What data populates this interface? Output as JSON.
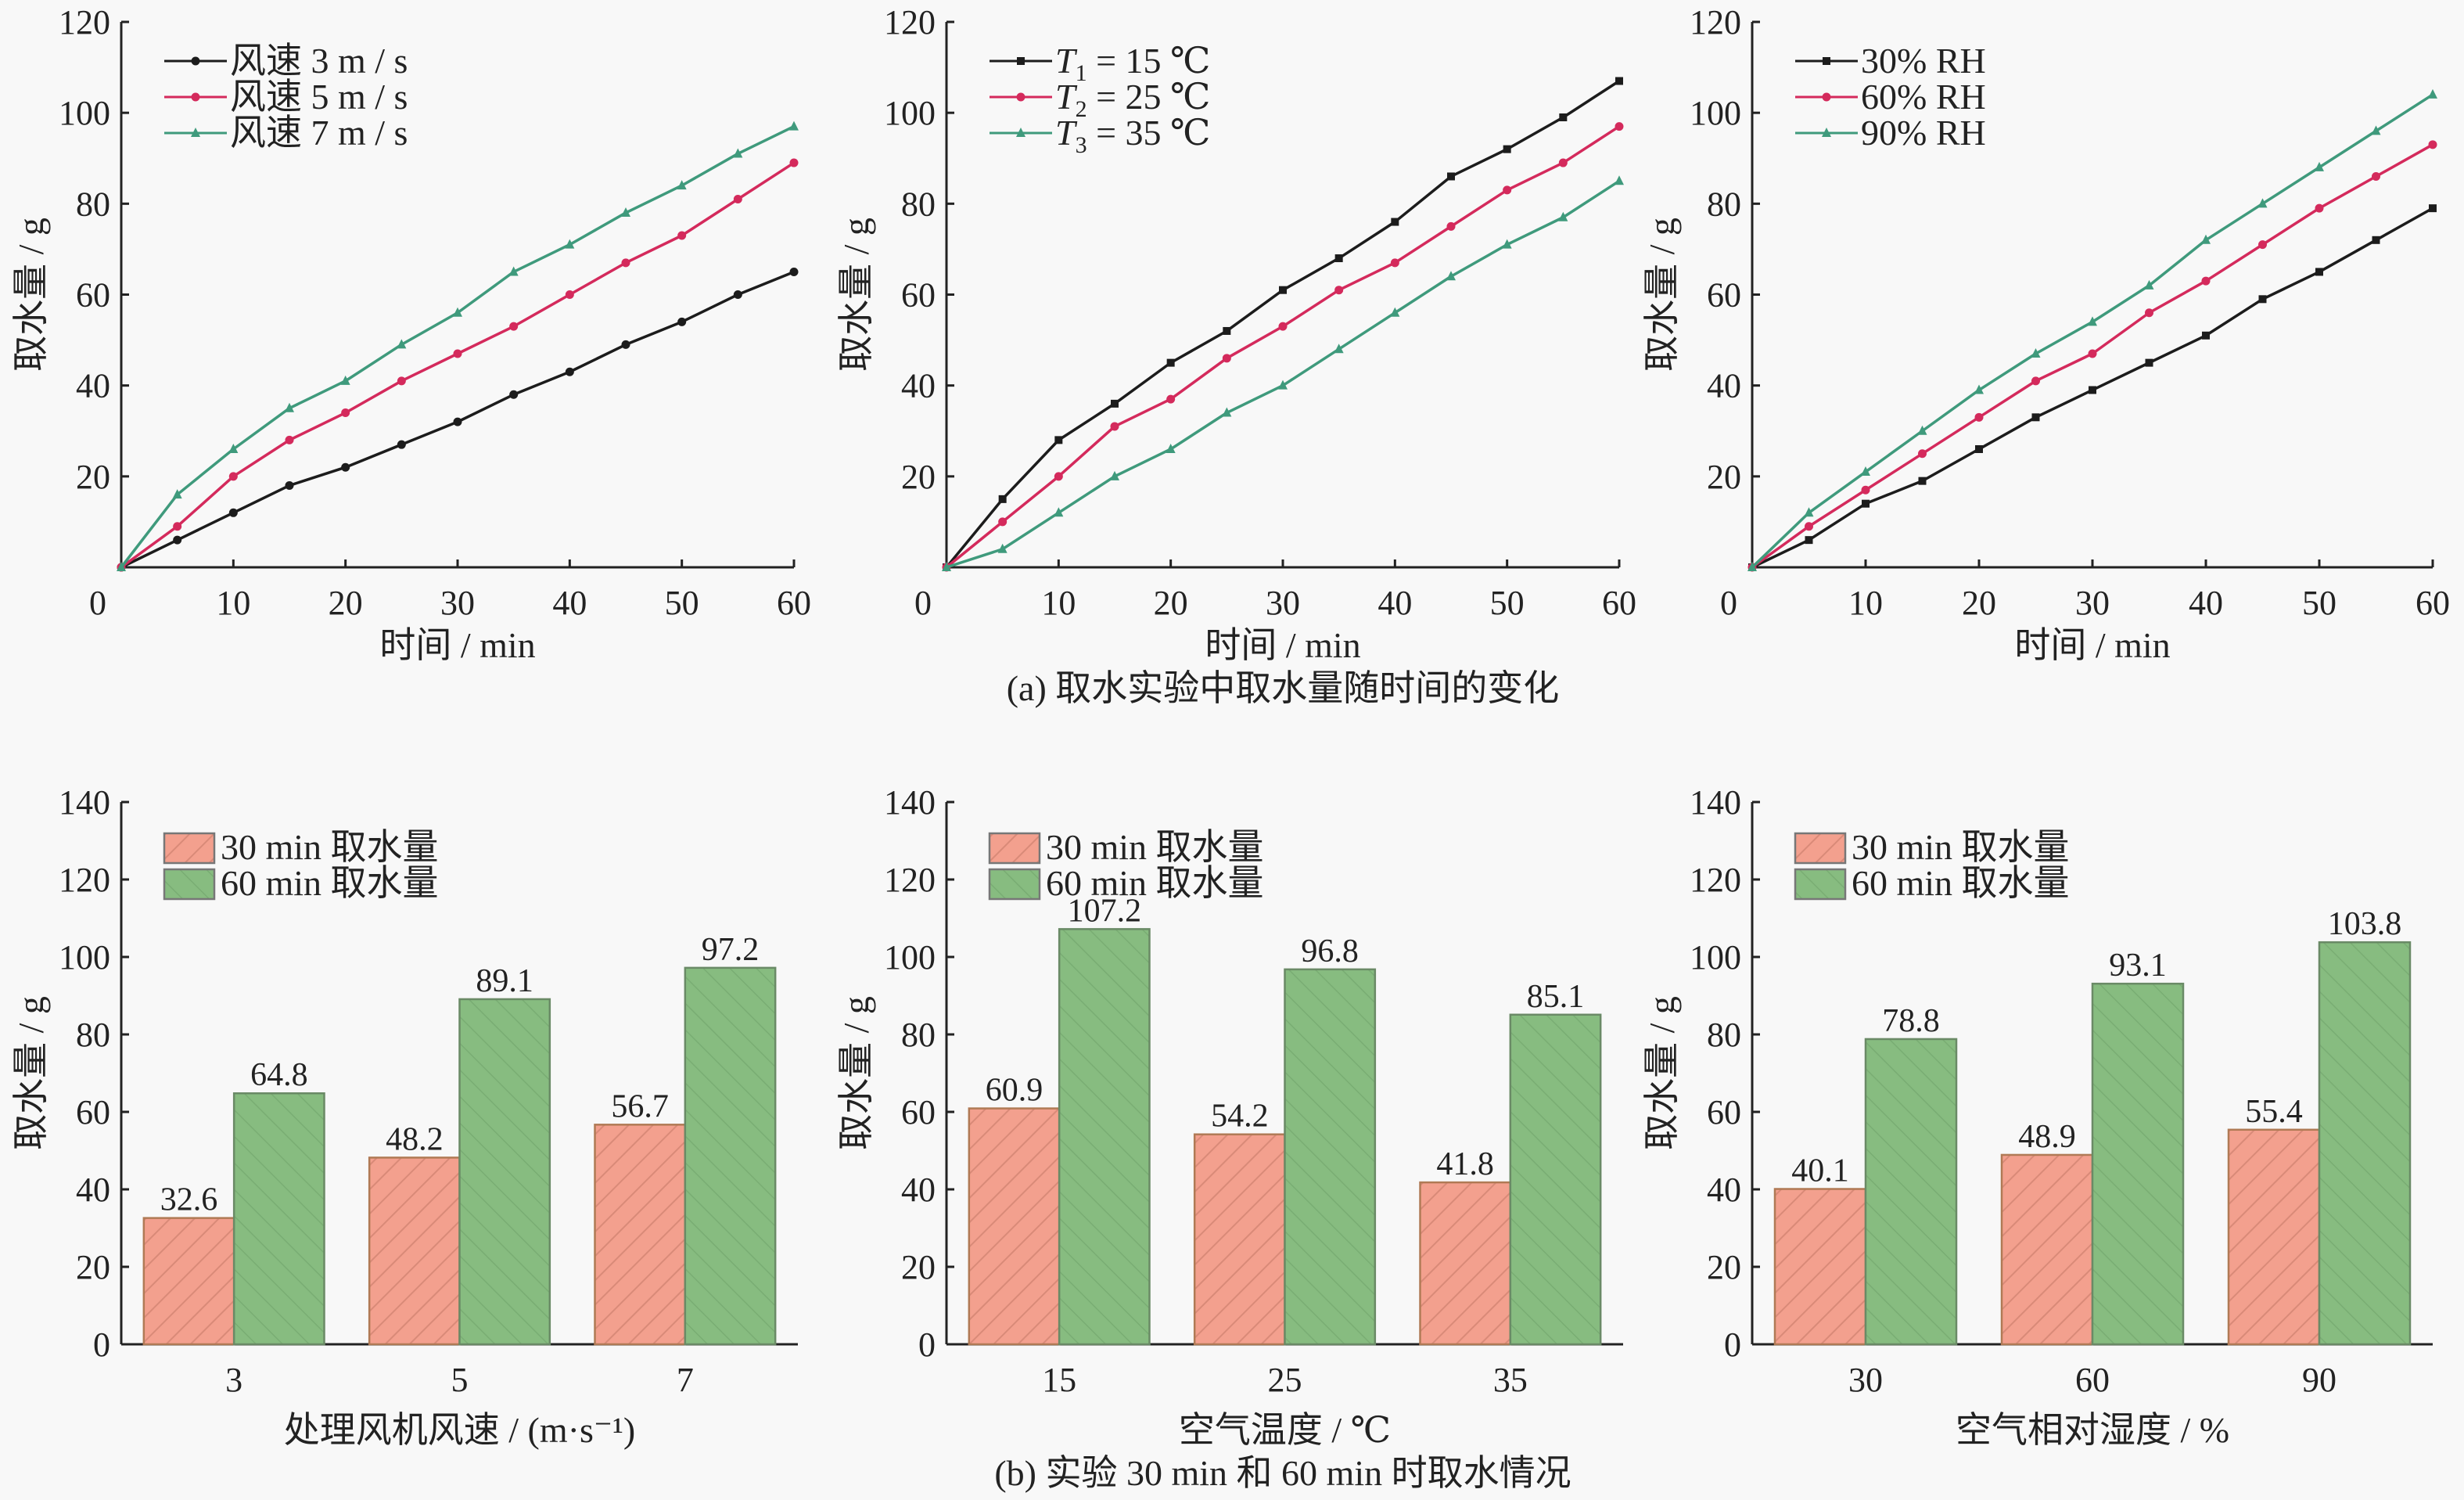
{
  "captions": {
    "a": "(a) 取水实验中取水量随时间的变化",
    "b": "(b) 实验 30 min 和 60 min 时取水情况"
  },
  "colors": {
    "series_black": "#1c1c1c",
    "series_red": "#d42a5c",
    "series_green": "#3f9a7c",
    "bar_30": "#f3a08e",
    "bar_60": "#87bc80"
  },
  "chart_data": [
    {
      "id": "line-wind",
      "type": "line",
      "title": "",
      "xlabel": "时间 / min",
      "ylabel": "取水量 / g",
      "xlim": [
        0,
        60
      ],
      "ylim": [
        0,
        120
      ],
      "xticks": [
        0,
        10,
        20,
        30,
        40,
        50,
        60
      ],
      "yticks": [
        20,
        40,
        60,
        80,
        100,
        120
      ],
      "grid": false,
      "legend": "top-left",
      "x": [
        0,
        5,
        10,
        15,
        20,
        25,
        30,
        35,
        40,
        45,
        50,
        55,
        60
      ],
      "series": [
        {
          "name": "风速 3 m / s",
          "color": "#1c1c1c",
          "marker": "circle",
          "values": [
            0,
            6,
            12,
            18,
            22,
            27,
            32,
            38,
            43,
            49,
            54,
            60,
            65
          ]
        },
        {
          "name": "风速 5 m / s",
          "color": "#d42a5c",
          "marker": "circle",
          "values": [
            0,
            9,
            20,
            28,
            34,
            41,
            47,
            53,
            60,
            67,
            73,
            81,
            89
          ]
        },
        {
          "name": "风速 7 m / s",
          "color": "#3f9a7c",
          "marker": "triangle",
          "values": [
            0,
            16,
            26,
            35,
            41,
            49,
            56,
            65,
            71,
            78,
            84,
            91,
            97
          ]
        }
      ]
    },
    {
      "id": "line-temp",
      "type": "line",
      "title": "",
      "xlabel": "时间 / min",
      "ylabel": "取水量 / g",
      "xlim": [
        0,
        60
      ],
      "ylim": [
        0,
        120
      ],
      "xticks": [
        0,
        10,
        20,
        30,
        40,
        50,
        60
      ],
      "yticks": [
        20,
        40,
        60,
        80,
        100,
        120
      ],
      "grid": false,
      "legend": "top-left",
      "x": [
        0,
        5,
        10,
        15,
        20,
        25,
        30,
        35,
        40,
        45,
        50,
        55,
        60
      ],
      "series": [
        {
          "name": "T",
          "sub": "1",
          "suffix": " = 15 ℃",
          "color": "#1c1c1c",
          "marker": "square",
          "values": [
            0,
            15,
            28,
            36,
            45,
            52,
            61,
            68,
            76,
            86,
            92,
            99,
            107
          ]
        },
        {
          "name": "T",
          "sub": "2",
          "suffix": " = 25 ℃",
          "color": "#d42a5c",
          "marker": "circle",
          "values": [
            0,
            10,
            20,
            31,
            37,
            46,
            53,
            61,
            67,
            75,
            83,
            89,
            97
          ]
        },
        {
          "name": "T",
          "sub": "3",
          "suffix": " = 35 ℃",
          "color": "#3f9a7c",
          "marker": "triangle",
          "values": [
            0,
            4,
            12,
            20,
            26,
            34,
            40,
            48,
            56,
            64,
            71,
            77,
            85
          ]
        }
      ]
    },
    {
      "id": "line-rh",
      "type": "line",
      "title": "",
      "xlabel": "时间 / min",
      "ylabel": "取水量 / g",
      "xlim": [
        0,
        60
      ],
      "ylim": [
        0,
        120
      ],
      "xticks": [
        0,
        10,
        20,
        30,
        40,
        50,
        60
      ],
      "yticks": [
        20,
        40,
        60,
        80,
        100,
        120
      ],
      "grid": false,
      "legend": "top-left",
      "x": [
        0,
        5,
        10,
        15,
        20,
        25,
        30,
        35,
        40,
        45,
        50,
        55,
        60
      ],
      "series": [
        {
          "name": "30% RH",
          "color": "#1c1c1c",
          "marker": "square",
          "values": [
            0,
            6,
            14,
            19,
            26,
            33,
            39,
            45,
            51,
            59,
            65,
            72,
            79
          ]
        },
        {
          "name": "60% RH",
          "color": "#d42a5c",
          "marker": "circle",
          "values": [
            0,
            9,
            17,
            25,
            33,
            41,
            47,
            56,
            63,
            71,
            79,
            86,
            93
          ]
        },
        {
          "name": "90% RH",
          "color": "#3f9a7c",
          "marker": "triangle",
          "values": [
            0,
            12,
            21,
            30,
            39,
            47,
            54,
            62,
            72,
            80,
            88,
            96,
            104
          ]
        }
      ]
    },
    {
      "id": "bar-wind",
      "type": "bar",
      "title": "",
      "xlabel": "处理风机风速 / (m·s⁻¹)",
      "ylabel": "取水量 / g",
      "ylim": [
        0,
        140
      ],
      "yticks": [
        0,
        20,
        40,
        60,
        80,
        100,
        120,
        140
      ],
      "legend": "top-left",
      "categories": [
        "3",
        "5",
        "7"
      ],
      "series": [
        {
          "name": "30 min 取水量",
          "color": "#f3a08e",
          "values": [
            32.6,
            48.2,
            56.7
          ],
          "labels": [
            "32.6",
            "48.2",
            "56.7"
          ]
        },
        {
          "name": "60 min 取水量",
          "color": "#87bc80",
          "values": [
            64.8,
            89.1,
            97.2
          ],
          "labels": [
            "64.8",
            "89.1",
            "97.2"
          ]
        }
      ]
    },
    {
      "id": "bar-temp",
      "type": "bar",
      "title": "",
      "xlabel": "空气温度 / ℃",
      "ylabel": "取水量 / g",
      "ylim": [
        0,
        140
      ],
      "yticks": [
        0,
        20,
        40,
        60,
        80,
        100,
        120,
        140
      ],
      "legend": "top-left",
      "categories": [
        "15",
        "25",
        "35"
      ],
      "series": [
        {
          "name": "30 min 取水量",
          "color": "#f3a08e",
          "values": [
            60.9,
            54.2,
            41.8
          ],
          "labels": [
            "60.9",
            "54.2",
            "41.8"
          ]
        },
        {
          "name": "60 min 取水量",
          "color": "#87bc80",
          "values": [
            107.2,
            96.8,
            85.1
          ],
          "labels": [
            "107.2",
            "96.8",
            "85.1"
          ]
        }
      ]
    },
    {
      "id": "bar-rh",
      "type": "bar",
      "title": "",
      "xlabel": "空气相对湿度 / %",
      "ylabel": "取水量 / g",
      "ylim": [
        0,
        140
      ],
      "yticks": [
        0,
        20,
        40,
        60,
        80,
        100,
        120,
        140
      ],
      "legend": "top-left",
      "categories": [
        "30",
        "60",
        "90"
      ],
      "series": [
        {
          "name": "30 min 取水量",
          "color": "#f3a08e",
          "values": [
            40.1,
            48.9,
            55.4
          ],
          "labels": [
            "40.1",
            "48.9",
            "55.4"
          ]
        },
        {
          "name": "60 min 取水量",
          "color": "#87bc80",
          "values": [
            78.8,
            93.1,
            103.8
          ],
          "labels": [
            "78.8",
            "93.1",
            "103.8"
          ]
        }
      ]
    }
  ]
}
